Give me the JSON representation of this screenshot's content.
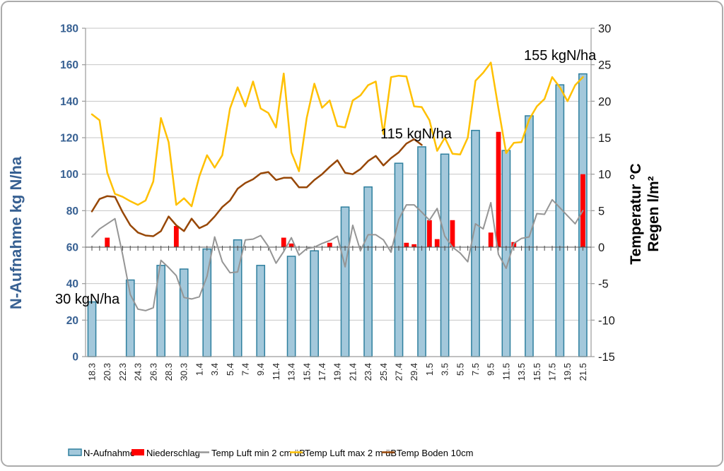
{
  "chart_data": {
    "type": "combo-bar-line",
    "title": "",
    "colors": {
      "bar_fill": "#A3C8DB",
      "bar_stroke": "#2E7F9E",
      "rain_red": "#FF0000",
      "line_gray": "#959595",
      "line_yellow": "#FFC000",
      "line_brown": "#974706",
      "axis_blue": "#376092",
      "grid": "#C6C6C6",
      "plot_border": "#9A9A9A",
      "zero_axis": "#4D4D4D"
    },
    "left_axis": {
      "title": "N-Aufnahme kg N/ha",
      "min": 0,
      "max": 180,
      "step": 20
    },
    "right_axis": {
      "title_line1": "Temperatur °C",
      "title_line2": "Regen l/m²",
      "min": -15,
      "max": 30,
      "step": 5
    },
    "x_axis": {
      "num_days": 65,
      "label_step": 2,
      "labels": [
        "18.3",
        "20.3",
        "22.3",
        "24.3",
        "26.3",
        "28.3",
        "30.3",
        "1.4",
        "3.4",
        "5.4",
        "7.4",
        "9.4",
        "11.4",
        "13.4",
        "15.4",
        "17.4",
        "19.4",
        "21.4",
        "23.4",
        "25.4",
        "27.4",
        "29.4",
        "1.5",
        "3.5",
        "5.5",
        "7.5",
        "9.5",
        "11.5",
        "13.5",
        "15.5",
        "17.5",
        "19.5",
        "21.5"
      ]
    },
    "series": {
      "n_aufnahme": {
        "label": "N-Aufnahme",
        "type": "bar",
        "axis": "left",
        "unit": "kg N/ha",
        "points": [
          [
            "18.3",
            0,
            30
          ],
          [
            "23.3",
            5,
            42
          ],
          [
            "27.3",
            9,
            50
          ],
          [
            "30.3",
            12,
            48
          ],
          [
            "2.4",
            15,
            59
          ],
          [
            "6.4",
            19,
            64
          ],
          [
            "9.4",
            22,
            50
          ],
          [
            "13.4",
            26,
            55
          ],
          [
            "16.4",
            29,
            58
          ],
          [
            "20.4",
            33,
            82
          ],
          [
            "23.4",
            36,
            93
          ],
          [
            "27.4",
            40,
            106
          ],
          [
            "30.4",
            43,
            115
          ],
          [
            "3.5",
            46,
            111
          ],
          [
            "7.5",
            50,
            124
          ],
          [
            "11.5",
            54,
            113
          ],
          [
            "14.5",
            57,
            132
          ],
          [
            "18.5",
            61,
            149
          ],
          [
            "21.5",
            64,
            155
          ]
        ]
      },
      "niederschlag": {
        "label": "Niederschlag",
        "type": "bar",
        "axis": "right",
        "unit": "l/m²",
        "points": [
          [
            "20.3",
            2,
            1.3
          ],
          [
            "29.3",
            11,
            2.9
          ],
          [
            "12.4",
            25,
            1.3
          ],
          [
            "13.4",
            26,
            0.5
          ],
          [
            "18.4",
            31,
            0.6
          ],
          [
            "28.4",
            41,
            0.6
          ],
          [
            "29.4",
            42,
            0.4
          ],
          [
            "1.5",
            44,
            3.7
          ],
          [
            "2.5",
            45,
            1.1
          ],
          [
            "4.5",
            47,
            3.7
          ],
          [
            "9.5",
            52,
            2.0
          ],
          [
            "10.5",
            53,
            15.8
          ],
          [
            "12.5",
            55,
            0.7
          ],
          [
            "21.5",
            64,
            10.0
          ]
        ]
      },
      "temp_min": {
        "label": "Temp Luft min 2 cm üB",
        "type": "line",
        "axis": "right",
        "unit": "°C",
        "start_day_index": 0,
        "values": [
          1.4,
          2.5,
          3.2,
          3.9,
          -1.0,
          -6.5,
          -8.5,
          -8.7,
          -8.3,
          -1.8,
          -2.8,
          -3.9,
          -6.9,
          -7.1,
          -6.8,
          -4.0,
          1.4,
          -2.0,
          -3.5,
          -3.4,
          1.0,
          1.1,
          1.6,
          0.1,
          -2.2,
          -0.6,
          1.3,
          -1.1,
          -0.2,
          0.0,
          0.5,
          0.9,
          1.5,
          -2.7,
          3.0,
          -0.5,
          1.7,
          1.7,
          1.0,
          -0.7,
          3.8,
          5.8,
          5.8,
          4.8,
          3.7,
          5.3,
          1.5,
          0.0,
          -0.8,
          -2.0,
          3.2,
          2.5,
          6.1,
          -1.0,
          -2.9,
          0.5,
          1.2,
          1.4,
          4.6,
          4.5,
          6.5,
          5.4,
          4.3,
          3.2,
          5.0
        ]
      },
      "temp_max": {
        "label": "Temp Luft max 2 m üB",
        "type": "line",
        "axis": "right",
        "unit": "°C",
        "start_day_index": 0,
        "values": [
          18.2,
          17.4,
          10.2,
          7.3,
          6.9,
          6.3,
          5.8,
          6.4,
          9.0,
          17.7,
          14.4,
          5.8,
          6.7,
          5.6,
          9.7,
          12.6,
          10.9,
          12.6,
          19.0,
          21.9,
          19.3,
          22.7,
          19.0,
          18.4,
          16.4,
          23.8,
          13.0,
          10.4,
          17.7,
          22.4,
          19.1,
          20.1,
          16.6,
          16.4,
          20.1,
          20.8,
          22.2,
          22.7,
          15.5,
          23.3,
          23.5,
          23.4,
          19.3,
          19.2,
          17.4,
          13.2,
          15.0,
          12.8,
          12.7,
          15.0,
          22.8,
          23.9,
          25.3,
          19.0,
          12.9,
          14.3,
          14.4,
          17.5,
          19.3,
          20.3,
          23.3,
          21.9,
          20.0,
          22.2,
          23.3
        ]
      },
      "temp_boden": {
        "label": "Temp Boden 10cm",
        "type": "line",
        "axis": "right",
        "unit": "°C",
        "start_day_index": 0,
        "values": [
          4.9,
          6.6,
          7.0,
          6.9,
          4.8,
          3.0,
          2.0,
          1.6,
          1.5,
          2.2,
          4.2,
          3.0,
          2.2,
          3.9,
          2.6,
          3.1,
          4.2,
          5.5,
          6.4,
          8.0,
          8.8,
          9.3,
          10.1,
          10.3,
          9.2,
          9.5,
          9.5,
          8.2,
          8.2,
          9.2,
          10.0,
          11.0,
          11.9,
          10.2,
          10.0,
          10.7,
          11.8,
          12.5,
          11.2,
          12.2,
          13.0,
          14.2,
          14.8,
          14.0
        ]
      }
    },
    "annotations": [
      {
        "text": "30 kgN/ha"
      },
      {
        "text": "115 kgN/ha"
      },
      {
        "text": "155 kgN/ha"
      }
    ],
    "legend_position": "bottom",
    "grid": true
  }
}
